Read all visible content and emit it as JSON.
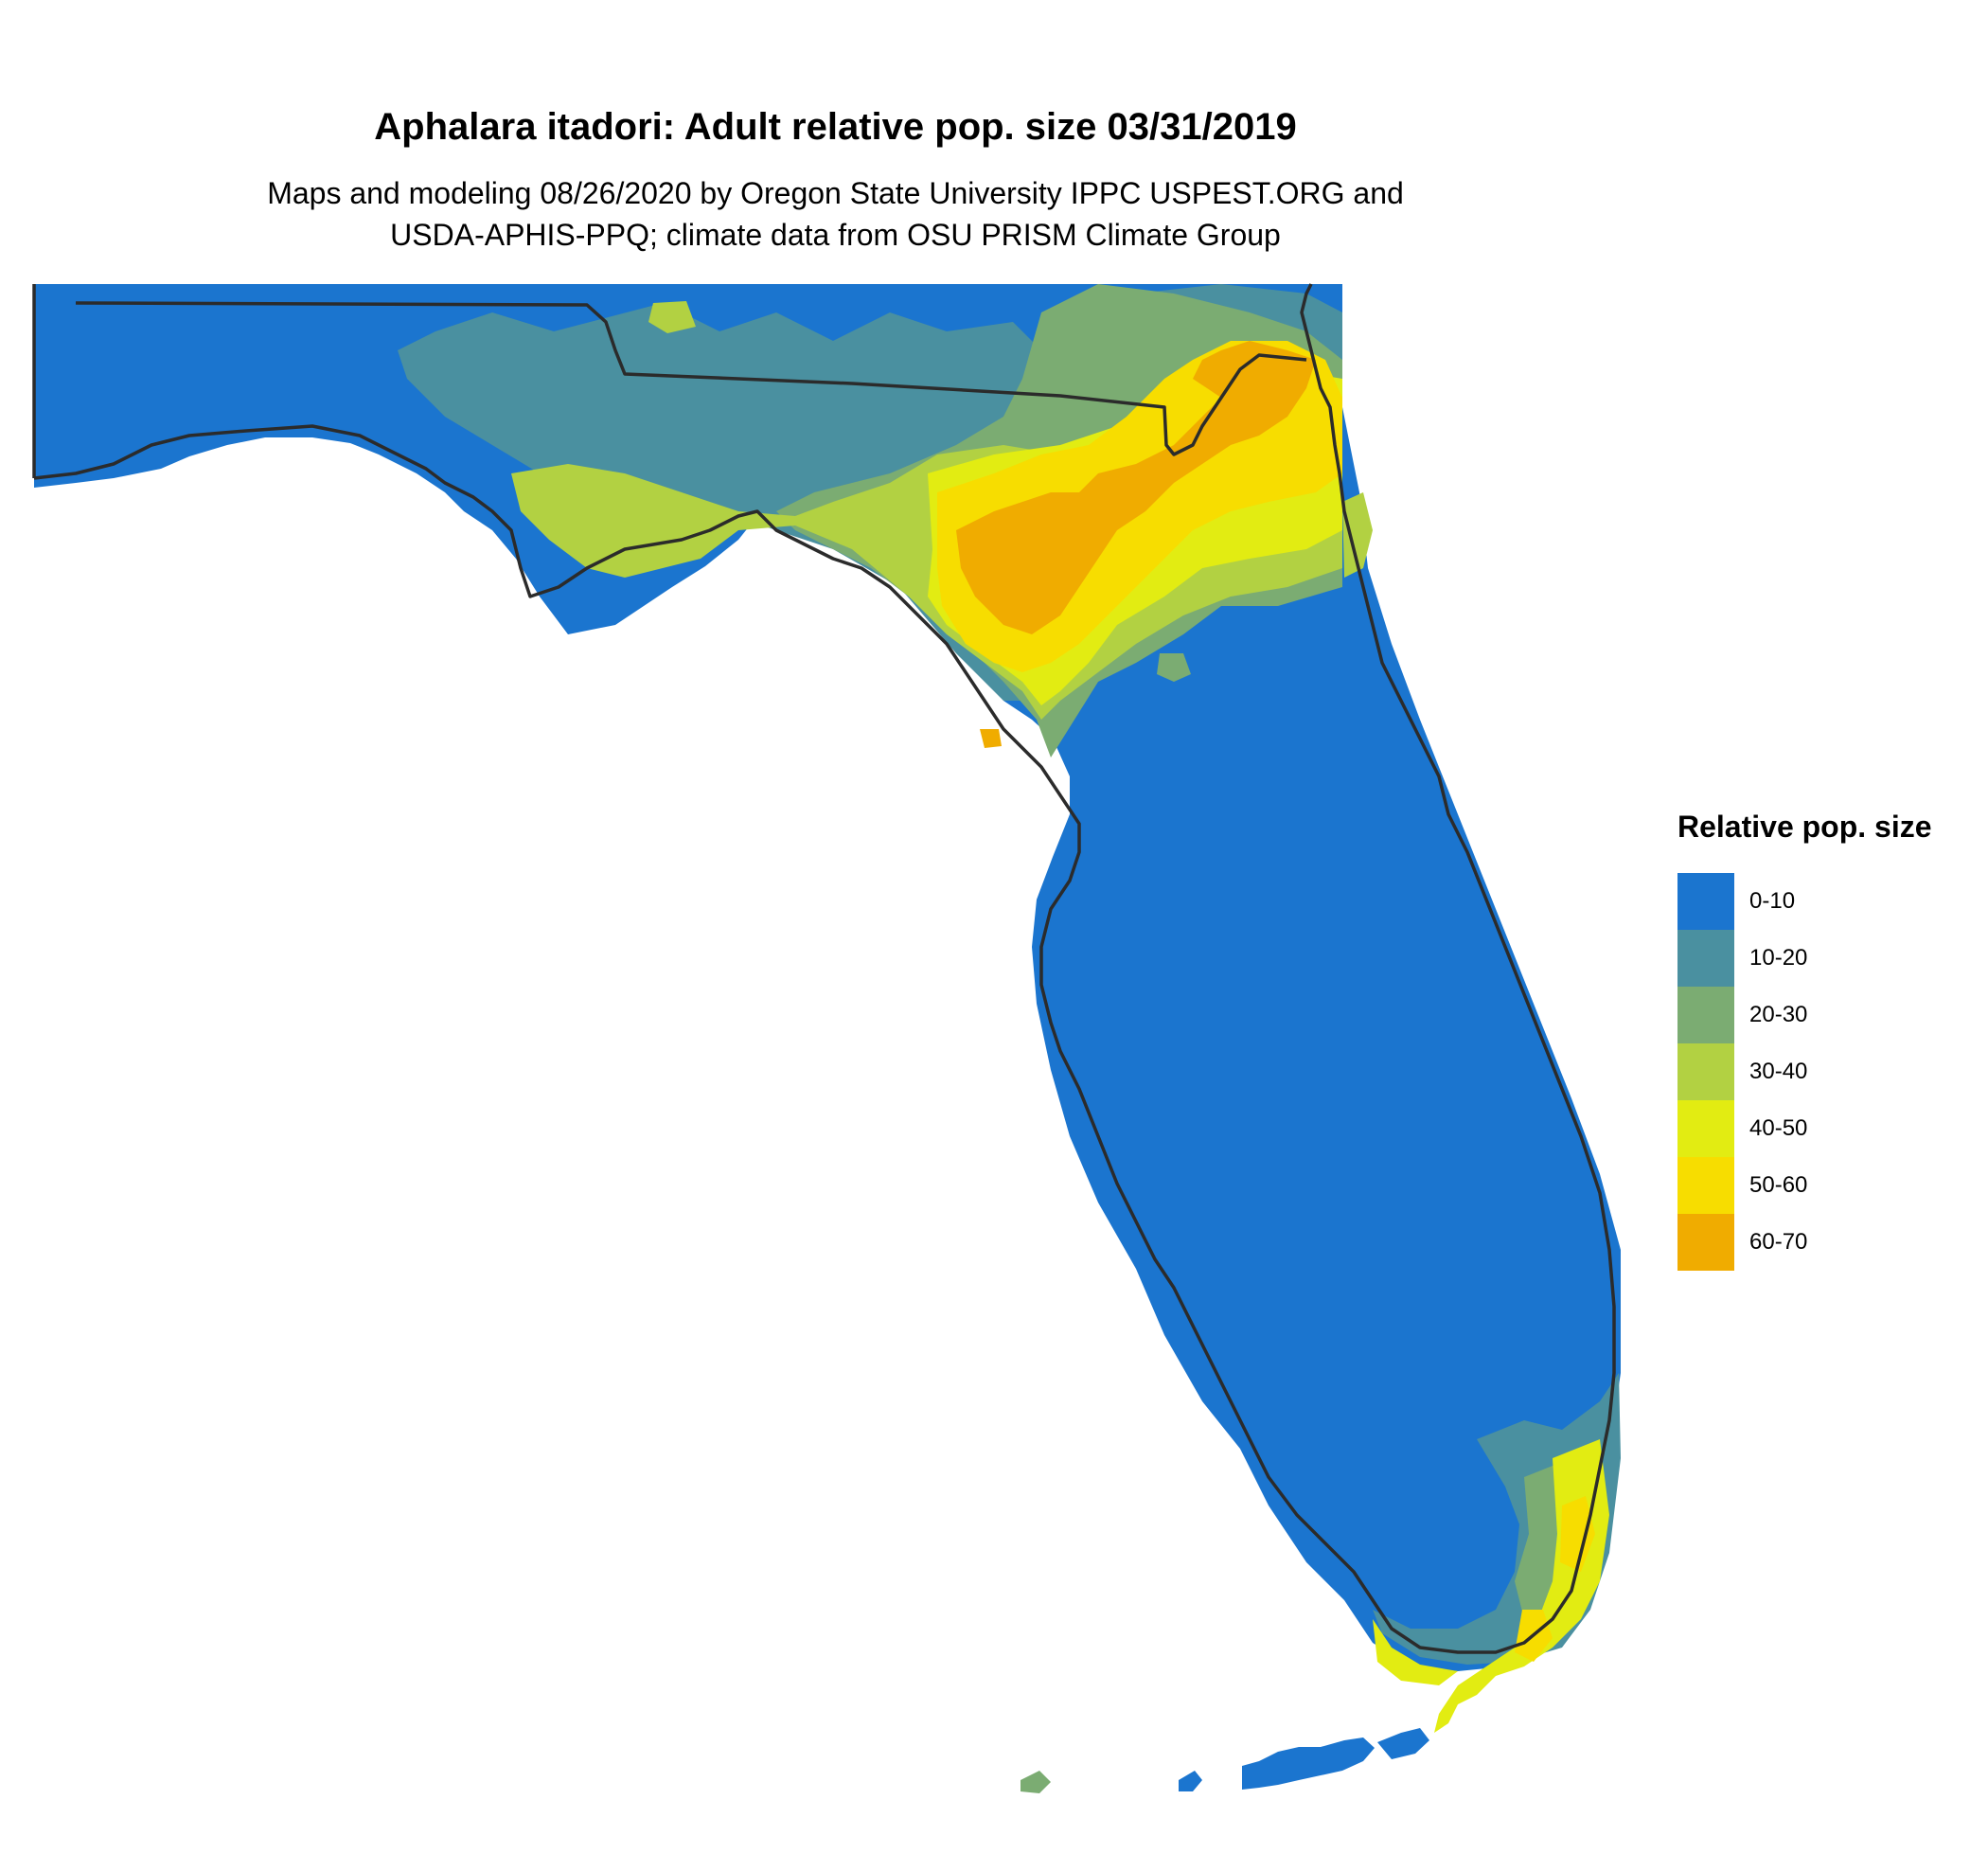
{
  "title": "Aphalara itadori: Adult relative pop. size 03/31/2019",
  "subtitle_lines": [
    "Maps and modeling 08/26/2020 by Oregon State University IPPC USPEST.ORG and",
    "USDA-APHIS-PPQ; climate data from OSU PRISM Climate Group"
  ],
  "legend": {
    "title": "Relative pop. size",
    "items": [
      {
        "label": "0-10",
        "color": "#1b75cf"
      },
      {
        "label": "10-20",
        "color": "#4a90a0"
      },
      {
        "label": "20-30",
        "color": "#7bac72"
      },
      {
        "label": "30-40",
        "color": "#b2d142"
      },
      {
        "label": "40-50",
        "color": "#e2ec12"
      },
      {
        "label": "50-60",
        "color": "#f7dd00"
      },
      {
        "label": "60-70",
        "color": "#f0ac00"
      }
    ]
  },
  "map": {
    "region": "Florida",
    "land_color": "#1b75cf",
    "outline_color": "#2b2b2b"
  }
}
